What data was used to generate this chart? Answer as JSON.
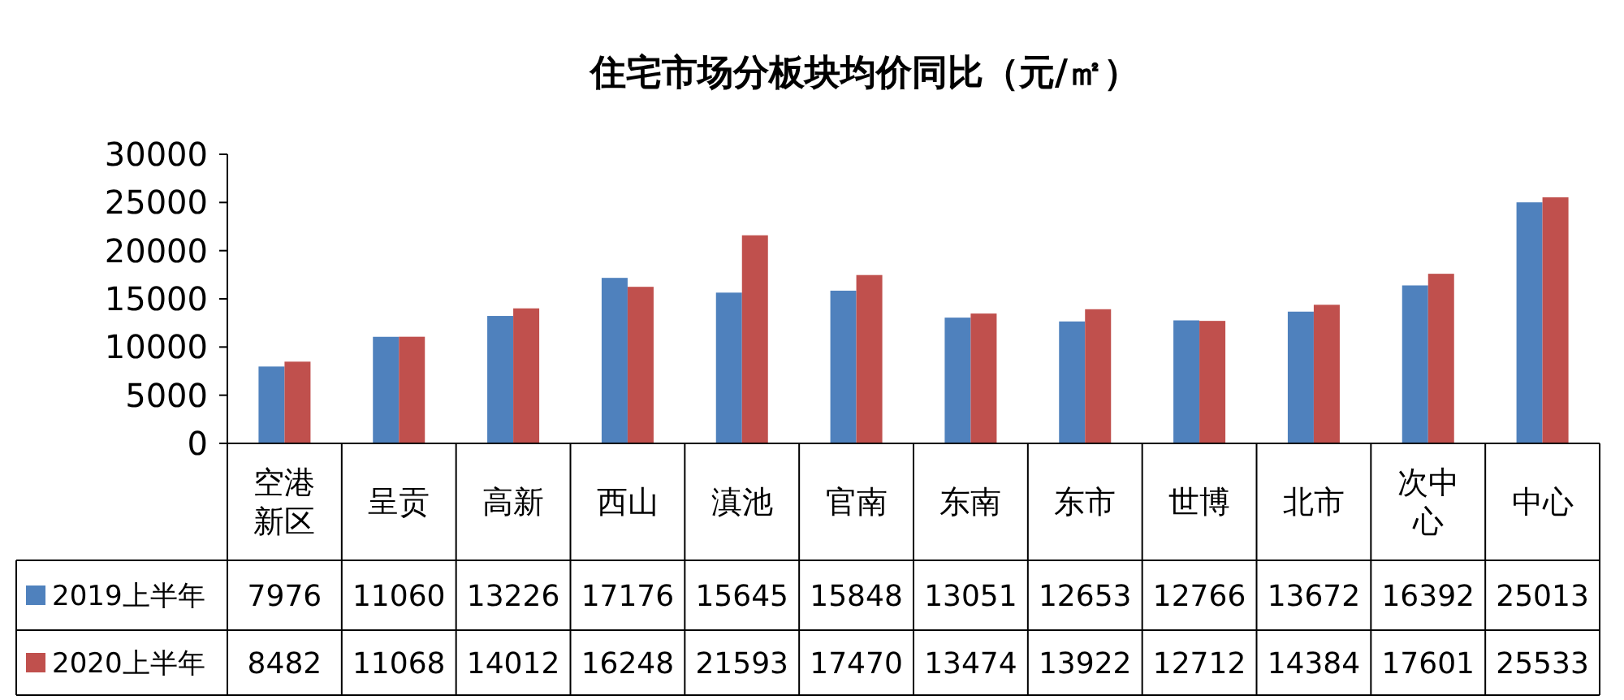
{
  "chart_data": {
    "type": "bar",
    "title": "住宅市场分板块均价同比（元/㎡）",
    "categories": [
      "空港新区",
      "呈贡",
      "高新",
      "西山",
      "滇池",
      "官南",
      "东南",
      "东市",
      "世博",
      "北市",
      "次中心",
      "中心"
    ],
    "series": [
      {
        "name": "2019上半年",
        "color": "#4f81bd",
        "values": [
          7976,
          11060,
          13226,
          17176,
          15645,
          15848,
          13051,
          12653,
          12766,
          13672,
          16392,
          25013
        ]
      },
      {
        "name": "2020上半年",
        "color": "#c0504d",
        "values": [
          8482,
          11068,
          14012,
          16248,
          21593,
          17470,
          13474,
          13922,
          12712,
          14384,
          17601,
          25533
        ]
      }
    ],
    "ylim": [
      0,
      30000
    ],
    "yticks": [
      0,
      5000,
      10000,
      15000,
      20000,
      25000,
      30000
    ],
    "data_labels": true,
    "legend": "bottom"
  }
}
